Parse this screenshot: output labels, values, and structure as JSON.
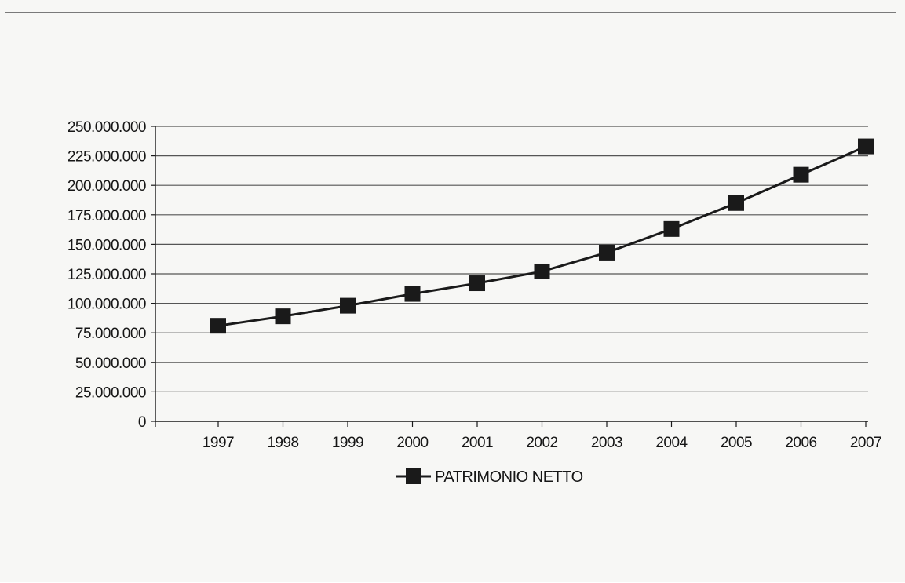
{
  "chart_data": {
    "type": "line",
    "categories": [
      "1997",
      "1998",
      "1999",
      "2000",
      "2001",
      "2002",
      "2003",
      "2004",
      "2005",
      "2006",
      "2007"
    ],
    "series": [
      {
        "name": "PATRIMONIO NETTO",
        "values": [
          81000000,
          89000000,
          98000000,
          108000000,
          117000000,
          127000000,
          143000000,
          163000000,
          185000000,
          209000000,
          233000000
        ]
      }
    ],
    "y_ticks": [
      "0",
      "25.000.000",
      "50.000.000",
      "75.000.000",
      "100.000.000",
      "125.000.000",
      "150.000.000",
      "175.000.000",
      "200.000.000",
      "225.000.000",
      "250.000.000"
    ],
    "ylim": [
      0,
      250000000
    ],
    "y_step": 25000000,
    "grid": true,
    "legend": "bottom",
    "marker": "square",
    "line_color": "#1a1a1a"
  }
}
